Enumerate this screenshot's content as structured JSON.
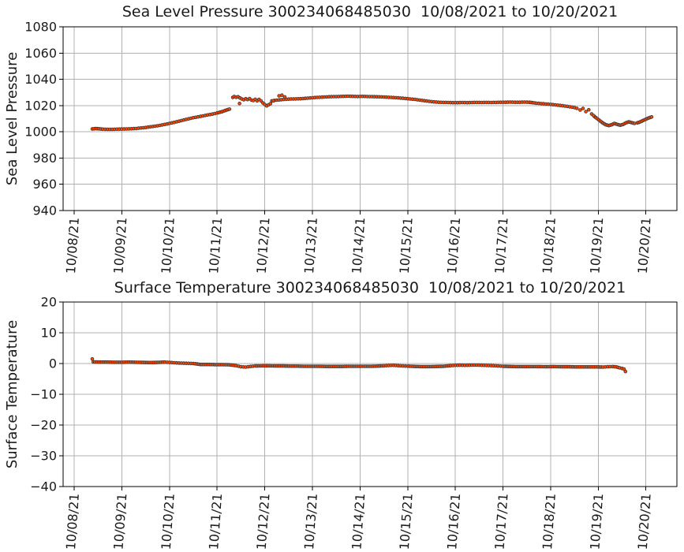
{
  "figure": {
    "background": "#ffffff",
    "marker_color": "#ff4500",
    "marker_edge_color": "#3a3a3a",
    "grid_color": "#b0b0b0",
    "axis_color": "#000000",
    "text_color": "#1a1a1a"
  },
  "chart_data": [
    {
      "type": "scatter",
      "title": "Sea Level Pressure 300234068485030  10/08/2021 to 10/20/2021",
      "ylabel": "Sea Level Pressure",
      "xlabel": "",
      "grid": true,
      "legend": "none",
      "ylim": [
        940,
        1080
      ],
      "xlim_days": [
        -0.232,
        12.65
      ],
      "yticks": [
        {
          "value": 1080,
          "label": "1080"
        },
        {
          "value": 1060,
          "label": "1060"
        },
        {
          "value": 1040,
          "label": "1040"
        },
        {
          "value": 1020,
          "label": "1020"
        },
        {
          "value": 1000,
          "label": "1000"
        },
        {
          "value": 980,
          "label": "980"
        },
        {
          "value": 960,
          "label": "960"
        },
        {
          "value": 940,
          "label": "940"
        }
      ],
      "xticks": [
        {
          "day": 0,
          "label": "10/08/21"
        },
        {
          "day": 1,
          "label": "10/09/21"
        },
        {
          "day": 2,
          "label": "10/10/21"
        },
        {
          "day": 3,
          "label": "10/11/21"
        },
        {
          "day": 4,
          "label": "10/12/21"
        },
        {
          "day": 5,
          "label": "10/13/21"
        },
        {
          "day": 6,
          "label": "10/14/21"
        },
        {
          "day": 7,
          "label": "10/15/21"
        },
        {
          "day": 8,
          "label": "10/16/21"
        },
        {
          "day": 9,
          "label": "10/17/21"
        },
        {
          "day": 10,
          "label": "10/18/21"
        },
        {
          "day": 11,
          "label": "10/19/21"
        },
        {
          "day": 12,
          "label": "10/20/21"
        }
      ],
      "segments": [
        [
          [
            0.38,
            1002.2
          ],
          [
            0.45,
            1002.4
          ],
          [
            0.52,
            1002.3
          ],
          [
            0.6,
            1002.0
          ],
          [
            0.7,
            1001.9
          ],
          [
            0.8,
            1001.9
          ],
          [
            0.9,
            1002.0
          ],
          [
            1.0,
            1002.1
          ],
          [
            1.1,
            1002.2
          ],
          [
            1.2,
            1002.3
          ],
          [
            1.3,
            1002.5
          ],
          [
            1.4,
            1002.9
          ],
          [
            1.5,
            1003.3
          ],
          [
            1.6,
            1003.8
          ],
          [
            1.7,
            1004.3
          ],
          [
            1.8,
            1004.9
          ],
          [
            1.9,
            1005.6
          ],
          [
            2.0,
            1006.4
          ],
          [
            2.1,
            1007.2
          ],
          [
            2.2,
            1008.1
          ],
          [
            2.3,
            1009.0
          ],
          [
            2.4,
            1009.9
          ],
          [
            2.5,
            1010.7
          ],
          [
            2.6,
            1011.4
          ],
          [
            2.7,
            1012.1
          ],
          [
            2.8,
            1012.8
          ],
          [
            2.9,
            1013.5
          ],
          [
            3.0,
            1014.3
          ],
          [
            3.1,
            1015.3
          ],
          [
            3.2,
            1016.6
          ],
          [
            3.26,
            1017.3
          ]
        ],
        [
          [
            3.33,
            1026.2
          ],
          [
            3.36,
            1026.9
          ],
          [
            3.4,
            1026.3
          ],
          [
            3.44,
            1026.7
          ],
          [
            3.48,
            1025.8
          ],
          [
            3.52,
            1025.0
          ],
          [
            3.56,
            1024.4
          ],
          [
            3.6,
            1025.2
          ],
          [
            3.64,
            1024.6
          ],
          [
            3.68,
            1025.3
          ],
          [
            3.72,
            1024.2
          ],
          [
            3.76,
            1023.8
          ],
          [
            3.8,
            1024.8
          ],
          [
            3.84,
            1023.6
          ],
          [
            3.88,
            1024.7
          ],
          [
            3.92,
            1023.6
          ]
        ],
        [
          [
            4.15,
            1023.6
          ],
          [
            4.25,
            1024.1
          ],
          [
            4.35,
            1024.5
          ],
          [
            4.45,
            1024.8
          ],
          [
            4.55,
            1025.0
          ],
          [
            4.65,
            1025.1
          ],
          [
            4.75,
            1025.2
          ],
          [
            4.85,
            1025.5
          ],
          [
            4.95,
            1025.8
          ],
          [
            5.05,
            1026.1
          ],
          [
            5.15,
            1026.3
          ],
          [
            5.25,
            1026.5
          ],
          [
            5.35,
            1026.7
          ],
          [
            5.45,
            1026.8
          ],
          [
            5.55,
            1026.9
          ],
          [
            5.65,
            1027.0
          ],
          [
            5.75,
            1027.1
          ],
          [
            5.85,
            1027.0
          ],
          [
            5.95,
            1026.9
          ],
          [
            6.05,
            1027.0
          ],
          [
            6.15,
            1026.9
          ],
          [
            6.25,
            1026.8
          ],
          [
            6.35,
            1026.7
          ],
          [
            6.45,
            1026.6
          ],
          [
            6.55,
            1026.4
          ],
          [
            6.65,
            1026.2
          ],
          [
            6.75,
            1026.0
          ],
          [
            6.85,
            1025.7
          ],
          [
            6.95,
            1025.4
          ],
          [
            7.05,
            1025.0
          ],
          [
            7.15,
            1024.7
          ],
          [
            7.25,
            1024.2
          ],
          [
            7.35,
            1023.7
          ],
          [
            7.45,
            1023.2
          ],
          [
            7.55,
            1022.8
          ],
          [
            7.65,
            1022.5
          ],
          [
            7.75,
            1022.4
          ],
          [
            7.85,
            1022.3
          ],
          [
            7.95,
            1022.2
          ],
          [
            8.05,
            1022.2
          ],
          [
            8.15,
            1022.3
          ],
          [
            8.25,
            1022.2
          ],
          [
            8.35,
            1022.3
          ],
          [
            8.45,
            1022.4
          ],
          [
            8.55,
            1022.3
          ],
          [
            8.65,
            1022.4
          ],
          [
            8.75,
            1022.3
          ],
          [
            8.85,
            1022.4
          ],
          [
            8.95,
            1022.5
          ],
          [
            9.05,
            1022.5
          ],
          [
            9.15,
            1022.6
          ],
          [
            9.25,
            1022.5
          ],
          [
            9.35,
            1022.5
          ],
          [
            9.45,
            1022.6
          ],
          [
            9.55,
            1022.5
          ],
          [
            9.62,
            1022.2
          ],
          [
            9.7,
            1021.8
          ],
          [
            9.8,
            1021.5
          ],
          [
            9.9,
            1021.2
          ],
          [
            10.0,
            1020.9
          ],
          [
            10.1,
            1020.5
          ],
          [
            10.2,
            1020.1
          ],
          [
            10.3,
            1019.6
          ],
          [
            10.4,
            1019.1
          ],
          [
            10.5,
            1018.4
          ],
          [
            10.55,
            1017.9
          ]
        ],
        [
          [
            10.92,
            1011.6
          ],
          [
            10.98,
            1010.0
          ],
          [
            11.04,
            1008.2
          ],
          [
            11.1,
            1006.6
          ],
          [
            11.16,
            1005.4
          ],
          [
            11.22,
            1004.8
          ],
          [
            11.28,
            1005.4
          ],
          [
            11.34,
            1006.4
          ],
          [
            11.4,
            1005.6
          ],
          [
            11.46,
            1005.0
          ],
          [
            11.52,
            1005.6
          ],
          [
            11.58,
            1006.8
          ],
          [
            11.64,
            1007.6
          ],
          [
            11.7,
            1007.0
          ],
          [
            11.76,
            1006.4
          ],
          [
            11.82,
            1006.8
          ],
          [
            11.88,
            1007.6
          ],
          [
            11.94,
            1008.6
          ],
          [
            12.0,
            1009.6
          ],
          [
            12.06,
            1010.6
          ],
          [
            12.12,
            1011.3
          ]
        ]
      ],
      "isolated_points": [
        [
          3.47,
          1021.6
        ],
        [
          3.96,
          1022.0
        ],
        [
          4.0,
          1020.8
        ],
        [
          4.04,
          1019.8
        ],
        [
          4.08,
          1020.6
        ],
        [
          4.12,
          1021.4
        ],
        [
          4.18,
          1023.6
        ],
        [
          4.3,
          1027.4
        ],
        [
          4.36,
          1027.9
        ],
        [
          4.42,
          1026.6
        ],
        [
          10.62,
          1016.6
        ],
        [
          10.68,
          1017.8
        ],
        [
          10.74,
          1015.4
        ],
        [
          10.8,
          1016.8
        ],
        [
          10.86,
          1013.6
        ],
        [
          10.9,
          1012.4
        ]
      ]
    },
    {
      "type": "scatter",
      "title": "Surface Temperature 300234068485030  10/08/2021 to 10/20/2021",
      "ylabel": "Surface Temperature",
      "xlabel": "",
      "grid": true,
      "legend": "none",
      "ylim": [
        -40,
        20
      ],
      "xlim_days": [
        -0.232,
        12.65
      ],
      "yticks": [
        {
          "value": 20,
          "label": "20"
        },
        {
          "value": 10,
          "label": "10"
        },
        {
          "value": 0,
          "label": "0"
        },
        {
          "value": -10,
          "label": "−10"
        },
        {
          "value": -20,
          "label": "−20"
        },
        {
          "value": -30,
          "label": "−30"
        },
        {
          "value": -40,
          "label": "−40"
        }
      ],
      "xticks": [
        {
          "day": 0,
          "label": "10/08/21"
        },
        {
          "day": 1,
          "label": "10/09/21"
        },
        {
          "day": 2,
          "label": "10/10/21"
        },
        {
          "day": 3,
          "label": "10/11/21"
        },
        {
          "day": 4,
          "label": "10/12/21"
        },
        {
          "day": 5,
          "label": "10/13/21"
        },
        {
          "day": 6,
          "label": "10/14/21"
        },
        {
          "day": 7,
          "label": "10/15/21"
        },
        {
          "day": 8,
          "label": "10/16/21"
        },
        {
          "day": 9,
          "label": "10/17/21"
        },
        {
          "day": 10,
          "label": "10/18/21"
        },
        {
          "day": 11,
          "label": "10/19/21"
        },
        {
          "day": 12,
          "label": "10/20/21"
        }
      ],
      "segments": [
        [
          [
            0.4,
            0.5
          ],
          [
            0.55,
            0.45
          ],
          [
            0.7,
            0.45
          ],
          [
            0.85,
            0.4
          ],
          [
            1.0,
            0.4
          ],
          [
            1.15,
            0.45
          ],
          [
            1.3,
            0.4
          ],
          [
            1.45,
            0.35
          ],
          [
            1.6,
            0.3
          ],
          [
            1.75,
            0.35
          ],
          [
            1.9,
            0.45
          ],
          [
            2.0,
            0.35
          ],
          [
            2.1,
            0.25
          ],
          [
            2.2,
            0.15
          ],
          [
            2.3,
            0.1
          ],
          [
            2.4,
            0.05
          ],
          [
            2.5,
            0.0
          ],
          [
            2.58,
            -0.15
          ],
          [
            2.65,
            -0.3
          ],
          [
            2.8,
            -0.3
          ],
          [
            2.95,
            -0.35
          ],
          [
            3.1,
            -0.35
          ],
          [
            3.25,
            -0.4
          ],
          [
            3.4,
            -0.7
          ],
          [
            3.5,
            -1.05
          ],
          [
            3.6,
            -1.15
          ],
          [
            3.7,
            -0.95
          ],
          [
            3.8,
            -0.8
          ],
          [
            3.95,
            -0.75
          ],
          [
            4.1,
            -0.75
          ],
          [
            4.25,
            -0.8
          ],
          [
            4.4,
            -0.8
          ],
          [
            4.55,
            -0.85
          ],
          [
            4.7,
            -0.85
          ],
          [
            4.85,
            -0.9
          ],
          [
            5.0,
            -0.9
          ],
          [
            5.15,
            -0.9
          ],
          [
            5.3,
            -0.95
          ],
          [
            5.45,
            -0.95
          ],
          [
            5.6,
            -0.95
          ],
          [
            5.75,
            -0.9
          ],
          [
            5.9,
            -0.9
          ],
          [
            6.05,
            -0.9
          ],
          [
            6.2,
            -0.9
          ],
          [
            6.35,
            -0.85
          ],
          [
            6.5,
            -0.75
          ],
          [
            6.6,
            -0.65
          ],
          [
            6.7,
            -0.6
          ],
          [
            6.8,
            -0.7
          ],
          [
            6.9,
            -0.8
          ],
          [
            7.0,
            -0.85
          ],
          [
            7.15,
            -0.95
          ],
          [
            7.3,
            -1.0
          ],
          [
            7.45,
            -1.0
          ],
          [
            7.6,
            -0.95
          ],
          [
            7.75,
            -0.9
          ],
          [
            7.9,
            -0.7
          ],
          [
            8.0,
            -0.6
          ],
          [
            8.1,
            -0.55
          ],
          [
            8.2,
            -0.6
          ],
          [
            8.3,
            -0.55
          ],
          [
            8.4,
            -0.5
          ],
          [
            8.5,
            -0.55
          ],
          [
            8.6,
            -0.6
          ],
          [
            8.7,
            -0.65
          ],
          [
            8.8,
            -0.7
          ],
          [
            8.9,
            -0.8
          ],
          [
            9.0,
            -0.9
          ],
          [
            9.15,
            -0.95
          ],
          [
            9.3,
            -1.0
          ],
          [
            9.45,
            -1.0
          ],
          [
            9.6,
            -1.0
          ],
          [
            9.75,
            -1.0
          ],
          [
            9.9,
            -1.05
          ],
          [
            10.05,
            -1.0
          ],
          [
            10.2,
            -1.05
          ],
          [
            10.35,
            -1.05
          ],
          [
            10.5,
            -1.1
          ],
          [
            10.65,
            -1.1
          ],
          [
            10.8,
            -1.1
          ],
          [
            10.95,
            -1.1
          ],
          [
            11.1,
            -1.15
          ],
          [
            11.2,
            -1.05
          ],
          [
            11.3,
            -1.0
          ],
          [
            11.38,
            -1.1
          ],
          [
            11.45,
            -1.4
          ],
          [
            11.5,
            -1.6
          ],
          [
            11.54,
            -1.8
          ],
          [
            11.57,
            -2.6
          ]
        ]
      ],
      "isolated_points": [
        [
          0.38,
          1.5
        ]
      ]
    }
  ]
}
